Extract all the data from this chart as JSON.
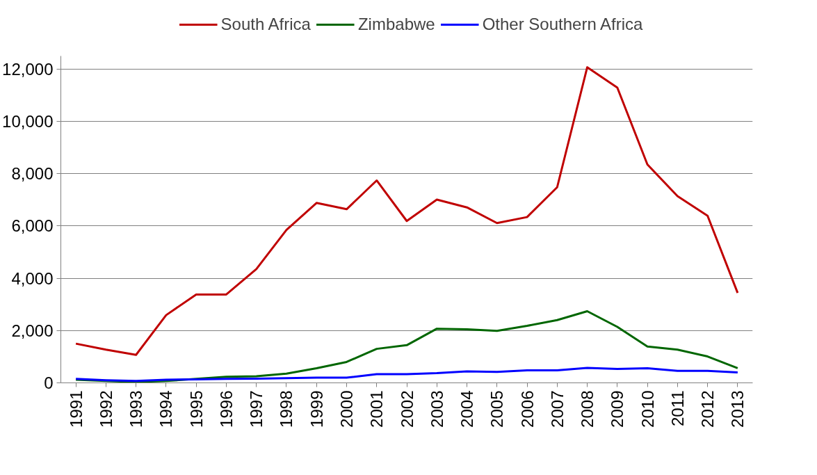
{
  "chart_data": {
    "type": "line",
    "categories": [
      "1991",
      "1992",
      "1993",
      "1994",
      "1995",
      "1996",
      "1997",
      "1998",
      "1999",
      "2000",
      "2001",
      "2002",
      "2003",
      "2004",
      "2005",
      "2006",
      "2007",
      "2008",
      "2009",
      "2010",
      "2011",
      "2012",
      "2013"
    ],
    "series": [
      {
        "name": "South Africa",
        "color": "#c00000",
        "values": [
          1500,
          1270,
          1070,
          2590,
          3380,
          3380,
          4350,
          5850,
          6880,
          6640,
          7740,
          6190,
          7010,
          6710,
          6110,
          6340,
          7480,
          12070,
          11290,
          8350,
          7140,
          6390,
          3440
        ]
      },
      {
        "name": "Zimbabwe",
        "color": "#006600",
        "values": [
          120,
          70,
          30,
          70,
          150,
          230,
          250,
          350,
          560,
          800,
          1300,
          1440,
          2070,
          2050,
          1990,
          2180,
          2400,
          2740,
          2140,
          1390,
          1270,
          1010,
          560
        ]
      },
      {
        "name": "Other Southern Africa",
        "color": "#0000ff",
        "values": [
          150,
          100,
          70,
          120,
          130,
          150,
          160,
          180,
          200,
          200,
          330,
          330,
          370,
          440,
          420,
          480,
          480,
          570,
          530,
          560,
          460,
          460,
          400
        ]
      }
    ],
    "ylim": [
      0,
      12500
    ],
    "yticks": [
      {
        "value": 0,
        "label": "0"
      },
      {
        "value": 2000,
        "label": "2,000"
      },
      {
        "value": 4000,
        "label": "4,000"
      },
      {
        "value": 6000,
        "label": "6,000"
      },
      {
        "value": 8000,
        "label": "8,000"
      },
      {
        "value": 10000,
        "label": "10,000"
      },
      {
        "value": 12000,
        "label": "12,000"
      }
    ],
    "grid": "y",
    "legend": "top",
    "marker": "none",
    "line_style": "solid"
  }
}
